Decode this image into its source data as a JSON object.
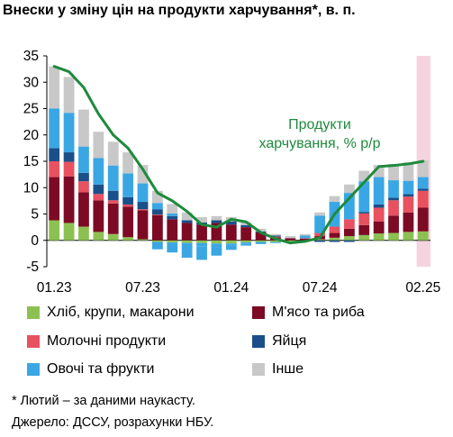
{
  "title": "Внески у зміну цін на продукти харчування*, в. п.",
  "annotation": "Продукти харчування, % р/р",
  "footnotes": {
    "note": "* Лютий – за даними наукасту.",
    "source": "Джерело: ДССУ, розрахунки НБУ."
  },
  "colors": {
    "bread": "#8cc152",
    "meat": "#7d0a24",
    "dairy": "#e8515f",
    "eggs": "#1b4f8a",
    "vegfruit": "#3aa7e4",
    "other": "#c8c8c8",
    "line": "#1e8a3c",
    "highlight": "#f6d4df"
  },
  "chart_data": {
    "type": "bar",
    "stacked": true,
    "ylim": [
      -5,
      35
    ],
    "yticks": [
      -5,
      0,
      5,
      10,
      15,
      20,
      25,
      30,
      35
    ],
    "x_tick_labels": [
      "01.23",
      "07.23",
      "01.24",
      "07.24",
      "02.25"
    ],
    "x_tick_index": [
      0,
      6,
      12,
      18,
      25
    ],
    "highlight_last": true,
    "categories": [
      "01.23",
      "02.23",
      "03.23",
      "04.23",
      "05.23",
      "06.23",
      "07.23",
      "08.23",
      "09.23",
      "10.23",
      "11.23",
      "12.23",
      "01.24",
      "02.24",
      "03.24",
      "04.24",
      "05.24",
      "06.24",
      "07.24",
      "08.24",
      "09.24",
      "10.24",
      "11.24",
      "12.24",
      "01.25",
      "02.25"
    ],
    "series": [
      {
        "name": "Хліб, крупи, макарони",
        "color_key": "bread",
        "values": [
          3.8,
          3.3,
          2.6,
          1.6,
          1.2,
          0.6,
          0.2,
          -0.3,
          -0.4,
          -0.5,
          -0.5,
          -0.6,
          -0.6,
          -0.4,
          -0.3,
          -0.3,
          -0.2,
          0.0,
          0.2,
          0.5,
          0.8,
          1.0,
          1.3,
          1.4,
          1.6,
          1.7
        ]
      },
      {
        "name": "М'ясо та риба",
        "color_key": "meat",
        "values": [
          8.2,
          8.8,
          6.5,
          6.0,
          5.8,
          5.8,
          5.5,
          4.8,
          4.0,
          3.3,
          3.0,
          3.3,
          3.0,
          2.5,
          1.5,
          0.6,
          0.3,
          0.3,
          0.6,
          0.9,
          1.4,
          1.9,
          2.3,
          3.3,
          3.7,
          4.5
        ]
      },
      {
        "name": "Молочні продукти",
        "color_key": "dairy",
        "values": [
          3.0,
          2.8,
          2.1,
          1.2,
          0.6,
          0.4,
          0.2,
          0.1,
          0.0,
          0.0,
          0.0,
          0.0,
          0.0,
          0.0,
          0.0,
          0.1,
          0.1,
          0.1,
          0.6,
          1.2,
          1.8,
          2.2,
          2.6,
          2.9,
          3.0,
          3.2
        ]
      },
      {
        "name": "Яйця",
        "color_key": "eggs",
        "values": [
          2.5,
          1.8,
          1.6,
          1.8,
          1.8,
          1.4,
          1.4,
          1.0,
          0.6,
          0.5,
          0.4,
          0.5,
          0.6,
          0.4,
          0.2,
          0.2,
          0.1,
          0.0,
          -0.3,
          -0.3,
          -0.3,
          0.3,
          0.6,
          0.5,
          0.5,
          0.4
        ]
      },
      {
        "name": "Овочі та фрукти",
        "color_key": "vegfruit",
        "values": [
          7.5,
          7.5,
          5.0,
          5.0,
          4.8,
          4.5,
          3.5,
          1.2,
          0.5,
          0.0,
          -0.7,
          -0.8,
          -0.4,
          -0.2,
          -0.4,
          -0.2,
          0.0,
          0.5,
          3.3,
          4.7,
          5.0,
          5.8,
          5.2,
          3.3,
          2.5,
          2.2
        ]
      },
      {
        "name": "Інше",
        "color_key": "other",
        "values": [
          8.0,
          6.8,
          7.0,
          5.0,
          4.5,
          4.0,
          3.5,
          2.3,
          1.8,
          1.5,
          1.0,
          0.8,
          0.8,
          0.6,
          0.5,
          0.3,
          0.3,
          0.3,
          0.6,
          1.1,
          1.6,
          2.0,
          2.3,
          3.1,
          3.5,
          3.2
        ]
      }
    ],
    "negative_extras": {
      "bread": [
        0,
        0,
        0,
        0,
        0,
        0,
        0,
        0,
        0,
        0,
        0,
        0,
        0,
        0,
        0,
        0,
        0,
        0,
        0,
        0,
        0,
        0,
        0,
        0,
        0,
        0
      ],
      "vegfruit": [
        0,
        0,
        0,
        0,
        0,
        0,
        0,
        -1.4,
        -1.9,
        -2.8,
        -2.5,
        -1.5,
        -0.8,
        -0.4,
        0,
        0,
        0,
        0,
        0,
        0,
        0,
        0,
        0,
        0,
        0,
        0
      ]
    },
    "line": {
      "name": "Продукти харчування, % р/р",
      "values": [
        33.0,
        32.0,
        29.0,
        24.0,
        20.0,
        17.5,
        13.5,
        9.0,
        7.5,
        5.5,
        3.0,
        2.5,
        4.0,
        3.5,
        1.5,
        0.3,
        -0.5,
        -0.2,
        0.5,
        5.0,
        8.0,
        11.0,
        14.0,
        14.2,
        14.5,
        15.0
      ]
    }
  },
  "legend": [
    {
      "label": "Хліб, крупи, макарони",
      "color_key": "bread"
    },
    {
      "label": "М'ясо та риба",
      "color_key": "meat"
    },
    {
      "label": "Молочні продукти",
      "color_key": "dairy"
    },
    {
      "label": "Яйця",
      "color_key": "eggs"
    },
    {
      "label": "Овочі та фрукти",
      "color_key": "vegfruit"
    },
    {
      "label": "Інше",
      "color_key": "other"
    }
  ]
}
